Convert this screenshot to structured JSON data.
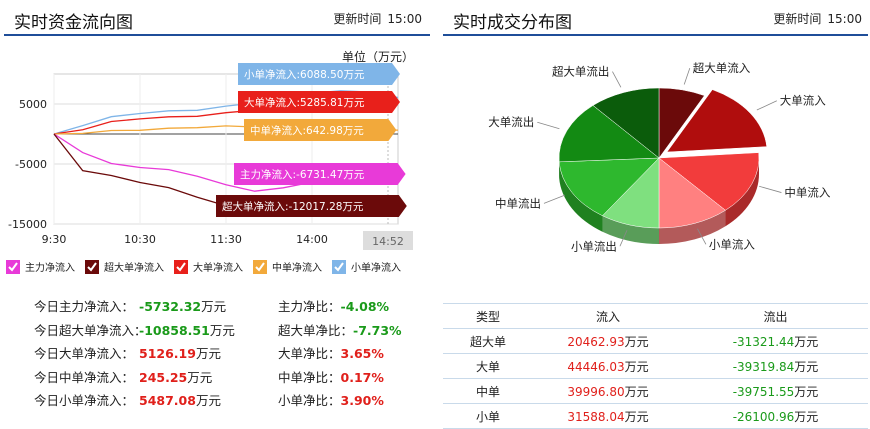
{
  "left": {
    "title": "实时资金流向图",
    "update_label": "更新时间",
    "update_time": "15:00",
    "unit": "单位（万元）",
    "chart_data": {
      "type": "line",
      "title": "实时资金流向图",
      "xlabel": "",
      "ylabel": "",
      "x_ticks": [
        "9:30",
        "10:30",
        "11:30",
        "14:00",
        "14:52"
      ],
      "y_ticks": [
        5000,
        -5000,
        -15000
      ],
      "ylim": [
        -15000,
        10000
      ],
      "grid": true,
      "series": [
        {
          "name": "小单净流入",
          "color": "#7fb5e8",
          "end_value": 6088.5,
          "values": [
            0,
            1500,
            2800,
            3500,
            3800,
            4000,
            4600,
            5200,
            6200,
            6800,
            7200,
            7000,
            6088.5
          ]
        },
        {
          "name": "大单净流入",
          "color": "#e8201b",
          "end_value": 5285.81,
          "values": [
            0,
            800,
            2000,
            2600,
            2800,
            3000,
            3500,
            4000,
            4500,
            5200,
            5800,
            5600,
            5285.81
          ]
        },
        {
          "name": "中单净流入",
          "color": "#f2a93b",
          "end_value": 642.98,
          "values": [
            0,
            200,
            500,
            700,
            900,
            1100,
            1300,
            1200,
            1000,
            900,
            800,
            700,
            642.98
          ]
        },
        {
          "name": "主力净流入",
          "color": "#e83ad8",
          "end_value": -6731.47,
          "values": [
            0,
            -3000,
            -5000,
            -5500,
            -6000,
            -7000,
            -8500,
            -9500,
            -9000,
            -8000,
            -7500,
            -7000,
            -6731.47
          ]
        },
        {
          "name": "超大单净流入",
          "color": "#6b0a0a",
          "end_value": -12017.28,
          "values": [
            0,
            -6000,
            -7000,
            -8000,
            -9000,
            -10500,
            -12000,
            -12500,
            -12500,
            -13000,
            -13500,
            -13000,
            -12017.28
          ]
        }
      ],
      "callouts": [
        {
          "text": "小单净流入:6088.50万元",
          "color": "#7fb5e8"
        },
        {
          "text": "大单净流入:5285.81万元",
          "color": "#e8201b"
        },
        {
          "text": "中单净流入:642.98万元",
          "color": "#f2a93b"
        },
        {
          "text": "主力净流入:-6731.47万元",
          "color": "#e83ad8"
        },
        {
          "text": "超大单净流入:-12017.28万元",
          "color": "#6b0a0a"
        }
      ]
    },
    "legend": [
      {
        "label": "主力净流入",
        "color": "#e83ad8"
      },
      {
        "label": "超大单净流入",
        "color": "#6b0a0a"
      },
      {
        "label": "大单净流入",
        "color": "#e8201b"
      },
      {
        "label": "中单净流入",
        "color": "#f2a93b"
      },
      {
        "label": "小单净流入",
        "color": "#7fb5e8"
      }
    ],
    "stats": [
      {
        "label": "今日主力净流入：",
        "value": "-5732.32",
        "unit": "万元",
        "class": "green"
      },
      {
        "label": "今日超大单净流入：",
        "value": "-10858.51",
        "unit": "万元",
        "class": "green"
      },
      {
        "label": "今日大单净流入：",
        "value": "5126.19",
        "unit": "万元",
        "class": "red"
      },
      {
        "label": "今日中单净流入：",
        "value": "245.25",
        "unit": "万元",
        "class": "red"
      },
      {
        "label": "今日小单净流入：",
        "value": "5487.08",
        "unit": "万元",
        "class": "red"
      }
    ],
    "ratios": [
      {
        "label": "主力净比：",
        "value": "-4.08%",
        "class": "green"
      },
      {
        "label": "超大单净比：",
        "value": "-7.73%",
        "class": "green"
      },
      {
        "label": "大单净比：",
        "value": "3.65%",
        "class": "red"
      },
      {
        "label": "中单净比：",
        "value": "0.17%",
        "class": "red"
      },
      {
        "label": "小单净比：",
        "value": "3.90%",
        "class": "red"
      }
    ]
  },
  "right": {
    "title": "实时成交分布图",
    "update_label": "更新时间",
    "update_time": "15:00",
    "pie_data": {
      "type": "pie",
      "slices": [
        {
          "label": "超大单流入",
          "value": 20462.93,
          "color": "#6b0a0a"
        },
        {
          "label": "大单流入",
          "value": 44446.03,
          "color": "#b00d0d"
        },
        {
          "label": "中单流入",
          "value": 39996.8,
          "color": "#f23c3c"
        },
        {
          "label": "小单流入",
          "value": 31588.04,
          "color": "#ff8080"
        },
        {
          "label": "小单流出",
          "value": 26100.96,
          "color": "#7fe07f"
        },
        {
          "label": "中单流出",
          "value": 39751.55,
          "color": "#2eb82e"
        },
        {
          "label": "大单流出",
          "value": 39319.84,
          "color": "#138a13"
        },
        {
          "label": "超大单流出",
          "value": 31321.44,
          "color": "#0b5c0b"
        }
      ]
    },
    "table": {
      "headers": [
        "类型",
        "流入",
        "流出"
      ],
      "unit": "万元",
      "rows": [
        {
          "type": "超大单",
          "in": "20462.93",
          "out": "-31321.44"
        },
        {
          "type": "大单",
          "in": "44446.03",
          "out": "-39319.84"
        },
        {
          "type": "中单",
          "in": "39996.80",
          "out": "-39751.55"
        },
        {
          "type": "小单",
          "in": "31588.04",
          "out": "-26100.96"
        }
      ]
    }
  }
}
